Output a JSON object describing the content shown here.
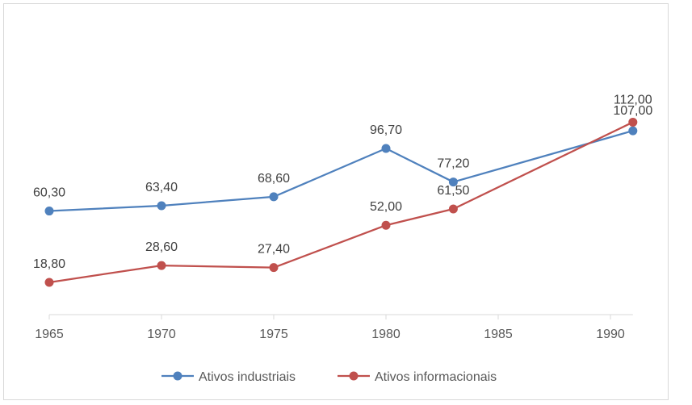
{
  "chart_data": {
    "type": "line",
    "x_ticks": [
      1965,
      1970,
      1975,
      1980,
      1985,
      1990
    ],
    "xlim": [
      1965,
      1991
    ],
    "ylim": [
      0,
      125
    ],
    "grid": false,
    "legend_position": "bottom",
    "series": [
      {
        "name": "Ativos industriais",
        "color": "#4f81bd",
        "x": [
          1965,
          1970,
          1975,
          1980,
          1983,
          1991
        ],
        "values": [
          60.3,
          63.4,
          68.6,
          96.7,
          77.2,
          107.0
        ],
        "labels": [
          "60,30",
          "63,40",
          "68,60",
          "96,70",
          "77,20",
          "107,00"
        ]
      },
      {
        "name": "Ativos informacionais",
        "color": "#c0504d",
        "x": [
          1965,
          1970,
          1975,
          1980,
          1983,
          1991
        ],
        "values": [
          18.8,
          28.6,
          27.4,
          52.0,
          61.5,
          112.0
        ],
        "labels": [
          "18,80",
          "28,60",
          "27,40",
          "52,00",
          "61,50",
          "112,00"
        ]
      }
    ]
  }
}
